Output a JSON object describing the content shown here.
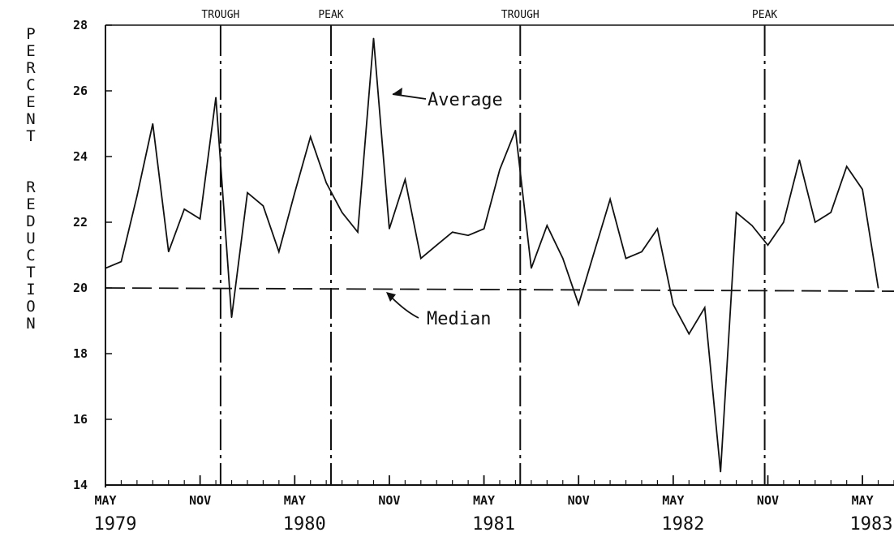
{
  "chart_data": {
    "type": "line",
    "title": "",
    "ylabel": "PERCENT REDUCTION",
    "xlabel": "",
    "ylim": [
      14,
      28
    ],
    "yticks": [
      14,
      16,
      18,
      20,
      22,
      24,
      26,
      28
    ],
    "ytick_labels": [
      "14",
      "16",
      "18",
      "20",
      "22",
      "24",
      "26",
      "28"
    ],
    "x_unit": "months since May 1979",
    "xlim": [
      0,
      50
    ],
    "month_ticks": [
      {
        "x": 0,
        "label": "MAY"
      },
      {
        "x": 6,
        "label": "NOV"
      },
      {
        "x": 12,
        "label": "MAY"
      },
      {
        "x": 18,
        "label": "NOV"
      },
      {
        "x": 24,
        "label": "MAY"
      },
      {
        "x": 30,
        "label": "NOV"
      },
      {
        "x": 36,
        "label": "MAY"
      },
      {
        "x": 42,
        "label": "NOV"
      },
      {
        "x": 48,
        "label": "MAY"
      }
    ],
    "year_labels": [
      {
        "x": 0,
        "label": "1979"
      },
      {
        "x": 12,
        "label": "1980"
      },
      {
        "x": 24,
        "label": "1981"
      },
      {
        "x": 36,
        "label": "1982"
      },
      {
        "x": 48,
        "label": "1983"
      }
    ],
    "series": [
      {
        "name": "Average",
        "style": "solid",
        "values": [
          20.6,
          20.8,
          22.8,
          25.0,
          21.1,
          22.4,
          22.1,
          25.8,
          19.1,
          22.9,
          22.5,
          21.1,
          22.9,
          24.6,
          23.2,
          22.3,
          21.7,
          27.6,
          21.8,
          23.3,
          20.9,
          21.3,
          21.7,
          21.6,
          21.8,
          23.6,
          24.8,
          20.6,
          21.9,
          20.9,
          19.5,
          21.1,
          22.7,
          20.9,
          21.1,
          21.8,
          19.5,
          18.6,
          19.4,
          14.4,
          22.3,
          21.9,
          21.3,
          22.0,
          23.9,
          22.0,
          22.3,
          23.7,
          23.0,
          20.0
        ]
      },
      {
        "name": "Median",
        "style": "dashed",
        "values": [
          20.0,
          19.9
        ]
      }
    ],
    "phases": [
      {
        "x": 7.3,
        "label": "TROUGH"
      },
      {
        "x": 14.3,
        "label": "PEAK"
      },
      {
        "x": 26.3,
        "label": "TROUGH"
      },
      {
        "x": 41.8,
        "label": "PEAK"
      }
    ],
    "annotations": [
      {
        "text": "Average",
        "target": "Average"
      },
      {
        "text": "Median",
        "target": "Median"
      }
    ],
    "grid": false,
    "legend": "none"
  }
}
